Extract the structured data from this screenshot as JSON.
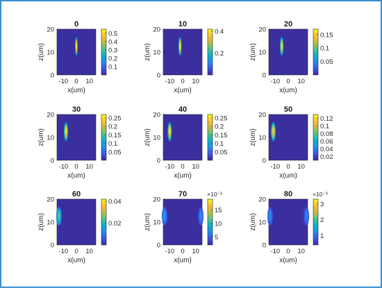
{
  "figure": {
    "accent_color": "#3a8ccf",
    "background_color": "#3b2fa0",
    "colormap": "parula",
    "colormap_stops": [
      "#3e26a8",
      "#3f55eb",
      "#1f8ff2",
      "#07b3c8",
      "#52c488",
      "#c3bc3e",
      "#fdbf30",
      "#f9fb0e"
    ]
  },
  "chart_data": [
    {
      "type": "heatmap",
      "title": "0",
      "xlabel": "x(um)",
      "ylabel": "z(um)",
      "xlim": [
        -15,
        15
      ],
      "ylim": [
        0,
        20
      ],
      "xticks": [
        "-10",
        "0",
        "10"
      ],
      "yticks": [
        "0",
        "10",
        "20"
      ],
      "colorbar": {
        "min": 0.0,
        "max": 0.55,
        "ticks": [
          0.1,
          0.2,
          0.3,
          0.4,
          0.5
        ],
        "tick_labels": [
          "0.1",
          "0.2",
          "0.3",
          "0.4",
          "0.5"
        ],
        "exponent": ""
      },
      "peaks": [
        {
          "x": 0,
          "z": 12.5,
          "value": 0.55,
          "x_width": 0.4,
          "z_length": 3.0
        }
      ]
    },
    {
      "type": "heatmap",
      "title": "10",
      "xlabel": "x(um)",
      "ylabel": "z(um)",
      "xlim": [
        -15,
        15
      ],
      "ylim": [
        0,
        20
      ],
      "xticks": [
        "-10",
        "0",
        "10"
      ],
      "yticks": [
        "0",
        "10",
        "20"
      ],
      "colorbar": {
        "min": 0.0,
        "max": 0.42,
        "ticks": [
          0.2,
          0.4
        ],
        "tick_labels": [
          "0.2",
          "0.4"
        ],
        "exponent": ""
      },
      "peaks": [
        {
          "x": -2,
          "z": 12.5,
          "value": 0.42,
          "x_width": 0.5,
          "z_length": 3.0
        }
      ]
    },
    {
      "type": "heatmap",
      "title": "20",
      "xlabel": "x(um)",
      "ylabel": "z(um)",
      "xlim": [
        -15,
        15
      ],
      "ylim": [
        0,
        20
      ],
      "xticks": [
        "-10",
        "0",
        "10"
      ],
      "yticks": [
        "0",
        "10",
        "20"
      ],
      "colorbar": {
        "min": 0.0,
        "max": 0.17,
        "ticks": [
          0.05,
          0.1,
          0.15
        ],
        "tick_labels": [
          "0.05",
          "0.1",
          "0.15"
        ],
        "exponent": ""
      },
      "peaks": [
        {
          "x": -5,
          "z": 12.5,
          "value": 0.16,
          "x_width": 0.6,
          "z_length": 3.0
        }
      ]
    },
    {
      "type": "heatmap",
      "title": "30",
      "xlabel": "x(um)",
      "ylabel": "z(um)",
      "xlim": [
        -15,
        15
      ],
      "ylim": [
        0,
        20
      ],
      "xticks": [
        "-10",
        "0",
        "10"
      ],
      "yticks": [
        "0",
        "10",
        "20"
      ],
      "colorbar": {
        "min": 0.0,
        "max": 0.27,
        "ticks": [
          0.05,
          0.1,
          0.15,
          0.2,
          0.25
        ],
        "tick_labels": [
          "0.05",
          "0.1",
          "0.15",
          "0.2",
          "0.25"
        ],
        "exponent": ""
      },
      "peaks": [
        {
          "x": -8,
          "z": 12.5,
          "value": 0.26,
          "x_width": 0.7,
          "z_length": 3.0
        }
      ]
    },
    {
      "type": "heatmap",
      "title": "40",
      "xlabel": "x(um)",
      "ylabel": "z(um)",
      "xlim": [
        -15,
        15
      ],
      "ylim": [
        0,
        20
      ],
      "xticks": [
        "-10",
        "0",
        "10"
      ],
      "yticks": [
        "0",
        "10",
        "20"
      ],
      "colorbar": {
        "min": 0.0,
        "max": 0.27,
        "ticks": [
          0.05,
          0.1,
          0.15,
          0.2,
          0.25
        ],
        "tick_labels": [
          "0.05",
          "0.1",
          "0.15",
          "0.2",
          "0.25"
        ],
        "exponent": ""
      },
      "peaks": [
        {
          "x": -10,
          "z": 12.5,
          "value": 0.26,
          "x_width": 0.7,
          "z_length": 3.0
        }
      ]
    },
    {
      "type": "heatmap",
      "title": "50",
      "xlabel": "x(um)",
      "ylabel": "z(um)",
      "xlim": [
        -15,
        15
      ],
      "ylim": [
        0,
        20
      ],
      "xticks": [
        "-10",
        "0",
        "10"
      ],
      "yticks": [
        "0",
        "10",
        "20"
      ],
      "colorbar": {
        "min": 0.01,
        "max": 0.13,
        "ticks": [
          0.02,
          0.04,
          0.06,
          0.08,
          0.1,
          0.12
        ],
        "tick_labels": [
          "0.02",
          "0.04",
          "0.06",
          "0.08",
          "0.1",
          "0.12"
        ],
        "exponent": ""
      },
      "peaks": [
        {
          "x": -11.5,
          "z": 12.5,
          "value": 0.12,
          "x_width": 0.8,
          "z_length": 3.0
        }
      ]
    },
    {
      "type": "heatmap",
      "title": "60",
      "xlabel": "x(um)",
      "ylabel": "z(um)",
      "xlim": [
        -15,
        15
      ],
      "ylim": [
        0,
        20
      ],
      "xticks": [
        "-10",
        "0",
        "10"
      ],
      "yticks": [
        "0",
        "10",
        "20"
      ],
      "colorbar": {
        "min": 0.0,
        "max": 0.042,
        "ticks": [
          0.02,
          0.04
        ],
        "tick_labels": [
          "0.02",
          "0.04"
        ],
        "exponent": ""
      },
      "peaks": [
        {
          "x": -13.5,
          "z": 12.5,
          "value": 0.025,
          "x_width": 0.9,
          "z_length": 3.0
        }
      ]
    },
    {
      "type": "heatmap",
      "title": "70",
      "xlabel": "x(um)",
      "ylabel": "z(um)",
      "xlim": [
        -15,
        15
      ],
      "ylim": [
        0,
        20
      ],
      "xticks": [
        "-10",
        "0",
        "10"
      ],
      "yticks": [
        "0",
        "10",
        "20"
      ],
      "colorbar": {
        "min": 0.002,
        "max": 0.019,
        "ticks": [
          0.005,
          0.01,
          0.015
        ],
        "tick_labels": [
          "5",
          "10",
          "15"
        ],
        "exponent": "×10⁻³"
      },
      "peaks": [
        {
          "x": -14,
          "z": 12.5,
          "value": 0.008,
          "x_width": 0.9,
          "z_length": 3.0
        },
        {
          "x": 14,
          "z": 12.5,
          "value": 0.007,
          "x_width": 0.9,
          "z_length": 3.0
        }
      ]
    },
    {
      "type": "heatmap",
      "title": "80",
      "xlabel": "x(um)",
      "ylabel": "z(um)",
      "xlim": [
        -15,
        15
      ],
      "ylim": [
        0,
        20
      ],
      "xticks": [
        "-10",
        "0",
        "10"
      ],
      "yticks": [
        "0",
        "10",
        "20"
      ],
      "colorbar": {
        "min": 0.0004,
        "max": 0.0033,
        "ticks": [
          0.001,
          0.002,
          0.003
        ],
        "tick_labels": [
          "1",
          "2",
          "3"
        ],
        "exponent": "×10⁻³"
      },
      "peaks": [
        {
          "x": -14,
          "z": 12.5,
          "value": 0.0013,
          "x_width": 0.9,
          "z_length": 3.0
        },
        {
          "x": 14,
          "z": 12.5,
          "value": 0.0012,
          "x_width": 0.9,
          "z_length": 3.0
        }
      ]
    }
  ]
}
